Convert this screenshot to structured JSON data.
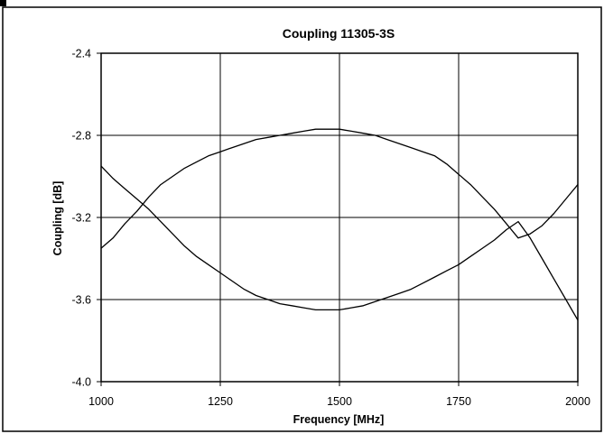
{
  "chart_data": {
    "type": "line",
    "title": "Coupling 11305-3S",
    "xlabel": "Frequency [MHz]",
    "ylabel": "Coupling [dB]",
    "xlim": [
      1000,
      2000
    ],
    "ylim": [
      -4.0,
      -2.4
    ],
    "xticks": [
      "1000",
      "1250",
      "1500",
      "1750",
      "2000"
    ],
    "yticks": [
      "-2.4",
      "-2.8",
      "-3.2",
      "-3.6",
      "-4.0"
    ],
    "grid": true,
    "legend": "none",
    "series": [
      {
        "x": [
          1000,
          1025,
          1050,
          1075,
          1100,
          1125,
          1150,
          1175,
          1200,
          1225,
          1250,
          1275,
          1300,
          1325,
          1350,
          1375,
          1400,
          1425,
          1450,
          1475,
          1500,
          1525,
          1550,
          1575,
          1600,
          1625,
          1650,
          1675,
          1700,
          1725,
          1750,
          1775,
          1800,
          1825,
          1850,
          1875,
          1900,
          1925,
          1950,
          1975,
          2000
        ],
        "values": [
          -3.35,
          -3.3,
          -3.23,
          -3.17,
          -3.1,
          -3.04,
          -3.0,
          -2.96,
          -2.93,
          -2.9,
          -2.88,
          -2.86,
          -2.84,
          -2.82,
          -2.81,
          -2.8,
          -2.79,
          -2.78,
          -2.77,
          -2.77,
          -2.77,
          -2.78,
          -2.79,
          -2.8,
          -2.82,
          -2.84,
          -2.86,
          -2.88,
          -2.9,
          -2.94,
          -2.99,
          -3.04,
          -3.1,
          -3.16,
          -3.23,
          -3.3,
          -3.28,
          -3.24,
          -3.18,
          -3.11,
          -3.04
        ]
      },
      {
        "x": [
          1000,
          1025,
          1050,
          1075,
          1100,
          1125,
          1150,
          1175,
          1200,
          1225,
          1250,
          1275,
          1300,
          1325,
          1350,
          1375,
          1400,
          1425,
          1450,
          1475,
          1500,
          1525,
          1550,
          1575,
          1600,
          1625,
          1650,
          1675,
          1700,
          1725,
          1750,
          1775,
          1800,
          1825,
          1850,
          1875,
          1900,
          1925,
          1950,
          1975,
          2000
        ],
        "values": [
          -2.95,
          -3.01,
          -3.06,
          -3.11,
          -3.16,
          -3.22,
          -3.28,
          -3.34,
          -3.39,
          -3.43,
          -3.47,
          -3.51,
          -3.55,
          -3.58,
          -3.6,
          -3.62,
          -3.63,
          -3.64,
          -3.65,
          -3.65,
          -3.65,
          -3.64,
          -3.63,
          -3.61,
          -3.59,
          -3.57,
          -3.55,
          -3.52,
          -3.49,
          -3.46,
          -3.43,
          -3.39,
          -3.35,
          -3.31,
          -3.26,
          -3.22,
          -3.3,
          -3.4,
          -3.5,
          -3.6,
          -3.7
        ]
      }
    ]
  },
  "colors": {
    "line": "#000000",
    "grid": "#000000",
    "background": "#ffffff"
  }
}
